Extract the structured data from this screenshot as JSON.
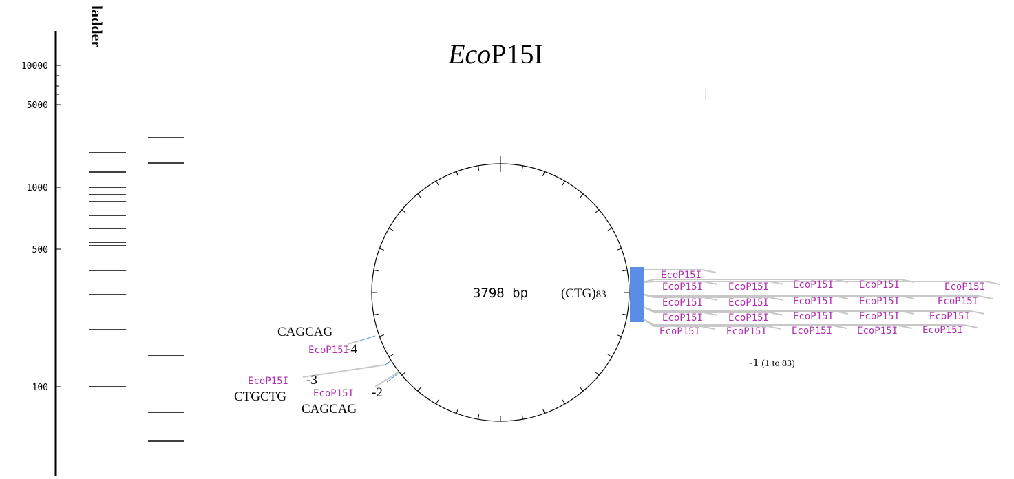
{
  "ladder": {
    "label": "ladder",
    "ticks": [
      "10000",
      "5000",
      "1000",
      "500",
      "100"
    ]
  },
  "title": {
    "italic": "Eco",
    "roman": "P15I"
  },
  "plasmid": {
    "size": "3798 bp",
    "repeat": "(CTG)",
    "repeat_count": "83"
  },
  "right_cluster": {
    "labels": [
      "EcoP15I",
      "EcoP15I",
      "EcoP15I",
      "EcoP15I",
      "EcoP15I",
      "EcoP15I",
      "EcoP15I",
      "EcoP15I",
      "EcoP15I",
      "EcoP15I",
      "EcoP15I",
      "EcoP15I",
      "EcoP15I",
      "EcoP15I",
      "EcoP15I",
      "EcoP15I",
      "EcoP15I",
      "EcoP15I",
      "EcoP15I",
      "EcoP15I",
      "EcoP15I"
    ],
    "index": "-1",
    "range": "(1 to 83)"
  },
  "left_sites": [
    {
      "sequence": "CAGCAG",
      "label": "EcoP15I",
      "index": "-4"
    },
    {
      "sequence": "CTGCTG",
      "label": "EcoP15I",
      "index": "-3"
    },
    {
      "sequence": "CAGCAG",
      "label": "EcoP15I",
      "index": "-2"
    }
  ]
}
